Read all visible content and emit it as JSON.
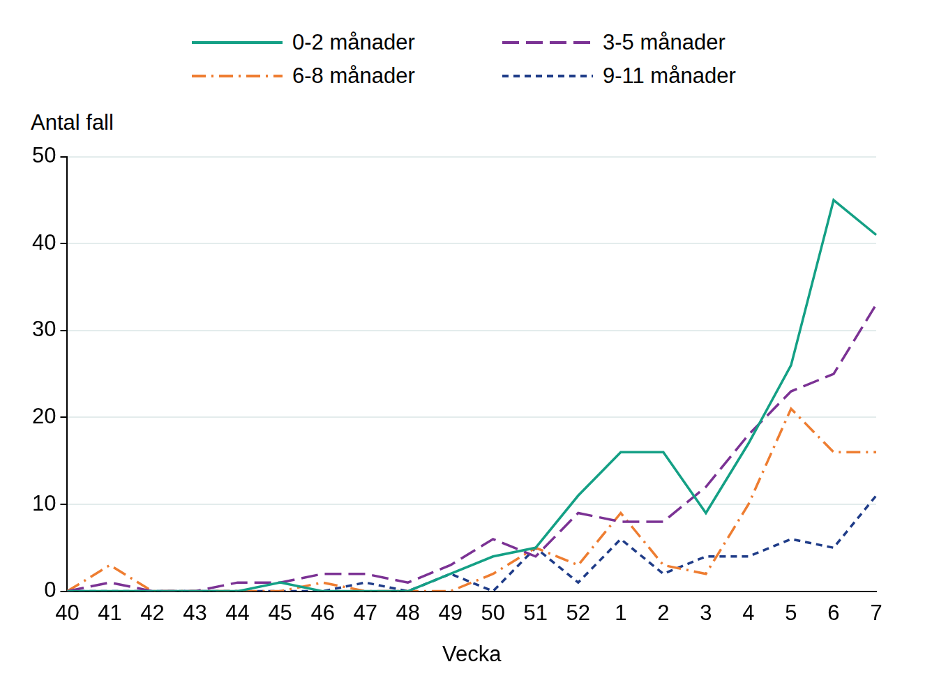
{
  "chart_data": {
    "type": "line",
    "y_label": "Antal fall",
    "x_label": "Vecka",
    "categories": [
      "40",
      "41",
      "42",
      "43",
      "44",
      "45",
      "46",
      "47",
      "48",
      "49",
      "50",
      "51",
      "52",
      "1",
      "2",
      "3",
      "4",
      "5",
      "6",
      "7"
    ],
    "series": [
      {
        "name": "0-2 månader",
        "color": "#14a085",
        "line_style": "solid",
        "values": [
          0,
          0,
          0,
          0,
          0,
          1,
          0,
          0,
          0,
          2,
          4,
          5,
          11,
          16,
          16,
          9,
          17,
          26,
          45,
          41
        ]
      },
      {
        "name": "3-5 månader",
        "color": "#7b3294",
        "line_style": "dashed",
        "values": [
          0,
          1,
          0,
          0,
          1,
          1,
          2,
          2,
          1,
          3,
          6,
          4,
          9,
          8,
          8,
          12,
          18,
          23,
          25,
          33
        ]
      },
      {
        "name": "6-8 månader",
        "color": "#ee7d31",
        "line_style": "dashdot",
        "values": [
          0,
          3,
          0,
          0,
          0,
          0,
          1,
          0,
          0,
          0,
          2,
          5,
          3,
          9,
          3,
          2,
          10,
          21,
          16,
          16
        ]
      },
      {
        "name": "9-11 månader",
        "color": "#1f3c88",
        "line_style": "dotted",
        "values": [
          0,
          0,
          0,
          0,
          0,
          0,
          0,
          1,
          0,
          2,
          0,
          5,
          1,
          6,
          2,
          4,
          4,
          6,
          5,
          11
        ]
      }
    ],
    "ylim": [
      0,
      50
    ],
    "yticks": [
      0,
      10,
      20,
      30,
      40,
      50
    ],
    "grid": true,
    "legend": "top"
  }
}
